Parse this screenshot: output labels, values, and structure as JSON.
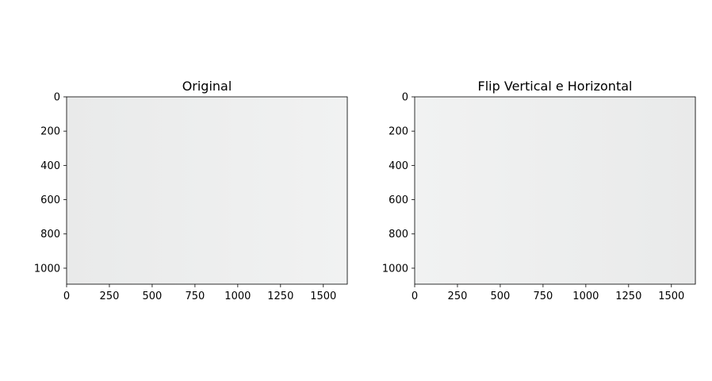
{
  "chart_data": [
    {
      "type": "image",
      "title": "Original",
      "flip": "none",
      "xlim": [
        0,
        1640
      ],
      "ylim": [
        1093,
        0
      ],
      "xticks": [
        0,
        250,
        500,
        750,
        1000,
        1250,
        1500
      ],
      "yticks": [
        0,
        200,
        400,
        600,
        800,
        1000
      ],
      "colors": {
        "background": "#edeeed",
        "skin": "#e4b9a3",
        "hair": "#9a6a45",
        "stripe_blue": "#8fb0d6",
        "stripe_white": "#f4f5f7",
        "lips": "#c8394a"
      }
    },
    {
      "type": "image",
      "title": "Flip Vertical e Horizontal",
      "flip": "both",
      "xlim": [
        0,
        1640
      ],
      "ylim": [
        1093,
        0
      ],
      "xticks": [
        0,
        250,
        500,
        750,
        1000,
        1250,
        1500
      ],
      "yticks": [
        0,
        200,
        400,
        600,
        800,
        1000
      ],
      "colors": {
        "background": "#edeeed",
        "skin": "#e4b9a3",
        "hair": "#9a6a45",
        "stripe_blue": "#8fb0d6",
        "stripe_white": "#f4f5f7",
        "lips": "#c8394a"
      }
    }
  ]
}
